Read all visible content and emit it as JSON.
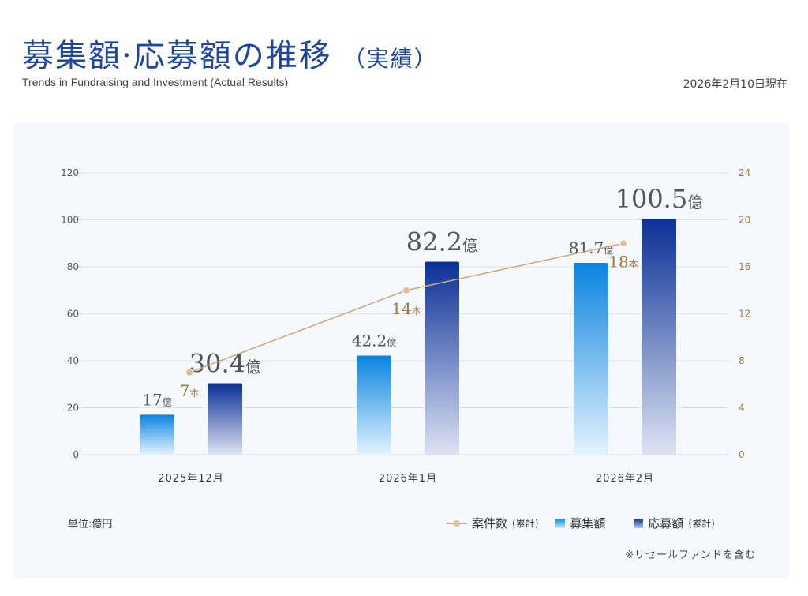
{
  "header": {
    "title": "募集額·応募額の推移",
    "title_suffix": "（実績）",
    "subtitle": "Trends in Fundraising and Investment (Actual Results)",
    "date": "2026年2月10日現在"
  },
  "chart_data": {
    "type": "bar",
    "categories": [
      "2025年12月",
      "2026年1月",
      "2026年2月"
    ],
    "series": [
      {
        "name": "募集額",
        "values": [
          17,
          42.2,
          81.7
        ],
        "labels": [
          "17",
          "42.2",
          "81.7"
        ],
        "color": "#0a84e0"
      },
      {
        "name": "応募額(累計)",
        "values": [
          30.4,
          82.2,
          100.5
        ],
        "labels": [
          "30.4",
          "82.2",
          "100.5"
        ],
        "color": "#0a2f96"
      },
      {
        "name": "案件数(累計)",
        "type": "line",
        "axis": "right",
        "values": [
          7,
          14,
          18
        ],
        "labels": [
          "7",
          "14",
          "18"
        ],
        "color": "#c9a978"
      }
    ],
    "value_unit": "億",
    "count_unit": "本",
    "ylim": [
      0,
      120
    ],
    "yticks": [
      0,
      20,
      40,
      60,
      80,
      100,
      120
    ],
    "y2lim": [
      0,
      24
    ],
    "y2ticks": [
      0,
      4,
      8,
      12,
      16,
      20,
      24
    ],
    "grid": true,
    "legend": "bottom-right"
  },
  "footer": {
    "unit": "単位:億円",
    "legend": [
      {
        "label": "案件数",
        "sub": "(累計)"
      },
      {
        "label": "募集額",
        "sub": ""
      },
      {
        "label": "応募額",
        "sub": "(累計)"
      }
    ],
    "note": "※リセールファンドを含む"
  }
}
